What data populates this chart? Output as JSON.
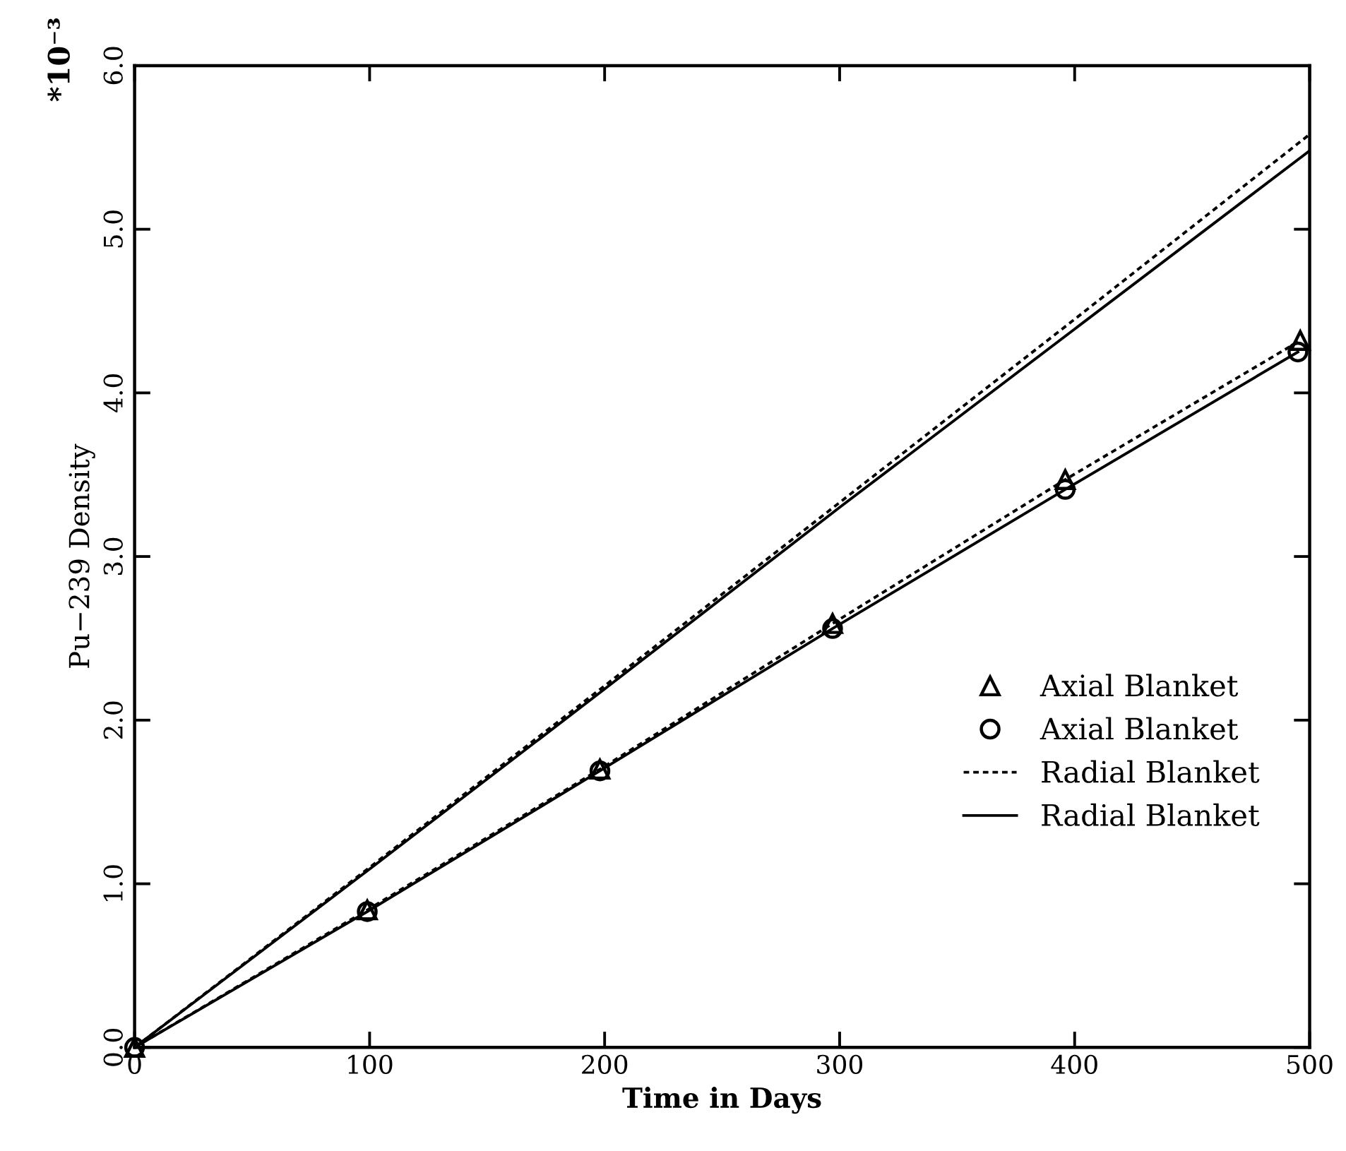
{
  "chart_data": {
    "type": "line",
    "xlabel": "Time in Days",
    "ylabel": "Pu−239 Density",
    "annotations": [
      "*10⁻³"
    ],
    "xlim": [
      0,
      500
    ],
    "xticks": [
      0,
      100,
      200,
      300,
      400,
      500
    ],
    "ylim": [
      0,
      6
    ],
    "yticks": [
      {
        "value": 0,
        "label": "0.0"
      },
      {
        "value": 1,
        "label": "1.0"
      },
      {
        "value": 2,
        "label": "2.0"
      },
      {
        "value": 3,
        "label": "3.0"
      },
      {
        "value": 4,
        "label": "4.0"
      },
      {
        "value": 5,
        "label": "5.0"
      },
      {
        "value": 6,
        "label": "6.0"
      }
    ],
    "grid": false,
    "legend": "right",
    "series": [
      {
        "name": "Axial Blanket",
        "type": "scatter",
        "marker": "triangle",
        "color": "#000000",
        "x": [
          0,
          99,
          198,
          297,
          396,
          496
        ],
        "values": [
          0,
          0.84,
          1.7,
          2.59,
          3.47,
          4.32
        ]
      },
      {
        "name": "Axial Blanket",
        "type": "scatter",
        "marker": "circle",
        "color": "#000000",
        "x": [
          0,
          99,
          198,
          297,
          396,
          495
        ],
        "values": [
          0,
          0.83,
          1.69,
          2.56,
          3.41,
          4.25
        ]
      },
      {
        "name": "Radial Blanket",
        "line_style": "dotted",
        "color": "#000000",
        "x": [
          0,
          100,
          200,
          300,
          400,
          500
        ],
        "values": [
          0,
          1.1,
          2.21,
          3.33,
          4.45,
          5.58
        ]
      },
      {
        "name": "Radial Blanket",
        "line_style": "solid",
        "color": "#000000",
        "x": [
          0,
          100,
          200,
          300,
          400,
          500
        ],
        "values": [
          0,
          1.09,
          2.19,
          3.3,
          4.39,
          5.48
        ]
      },
      {
        "line_style": "dotted",
        "color": "#000000",
        "x": [
          0,
          99,
          198,
          297,
          396,
          496
        ],
        "values": [
          0,
          0.84,
          1.7,
          2.59,
          3.47,
          4.32
        ]
      },
      {
        "line_style": "solid",
        "color": "#000000",
        "x": [
          0,
          99,
          198,
          297,
          396,
          495
        ],
        "values": [
          0,
          0.83,
          1.69,
          2.56,
          3.41,
          4.25
        ]
      }
    ]
  }
}
